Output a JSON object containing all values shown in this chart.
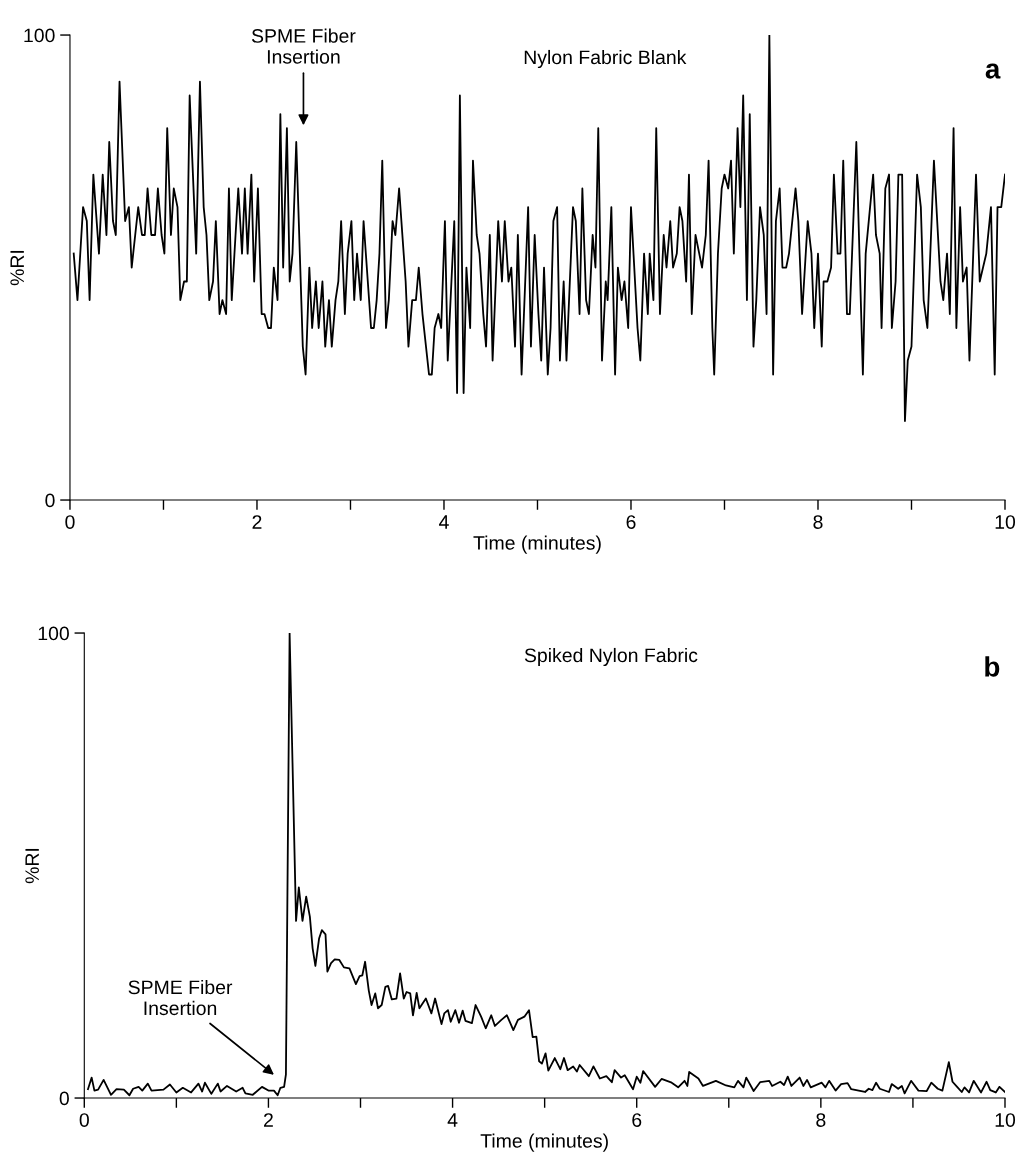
{
  "chart_data": [
    {
      "type": "line",
      "xlabel": "Time (minutes)",
      "ylabel": "%RI",
      "xlim": [
        0,
        10
      ],
      "ylim": [
        0,
        100
      ],
      "xticks": [
        0,
        {
          "value": 1,
          "label": null
        },
        2,
        {
          "value": 3,
          "label": null
        },
        4,
        {
          "value": 5,
          "label": null
        },
        6,
        {
          "value": 7,
          "label": null
        },
        8,
        {
          "value": 9,
          "label": null
        },
        10
      ],
      "yticks": [
        0,
        100
      ],
      "annotations": [
        "SPME Fiber\nInsertion",
        "Nylon Fabric Blank",
        "a"
      ],
      "series": [
        {
          "color": "#000000",
          "x": [
            0.04,
            0.08,
            0.14,
            0.18,
            0.21,
            0.25,
            0.31,
            0.35,
            0.39,
            0.42,
            0.46,
            0.49,
            0.53,
            0.59,
            0.63,
            0.66,
            0.73,
            0.77,
            0.8,
            0.83,
            0.87,
            0.91,
            0.94,
            0.98,
            1.01,
            1.04,
            1.08,
            1.11,
            1.15,
            1.18,
            1.22,
            1.25,
            1.28,
            1.35,
            1.39,
            1.43,
            1.46,
            1.49,
            1.53,
            1.56,
            1.6,
            1.63,
            1.67,
            1.7,
            1.73,
            1.8,
            1.84,
            1.87,
            1.9,
            1.94,
            1.97,
            2.01,
            2.05,
            2.08,
            2.12,
            2.15,
            2.18,
            2.22,
            2.25,
            2.28,
            2.32,
            2.35,
            2.38,
            2.42,
            2.49,
            2.52,
            2.56,
            2.59,
            2.63,
            2.66,
            2.7,
            2.73,
            2.77,
            2.8,
            2.84,
            2.87,
            2.9,
            2.94,
            2.97,
            3.01,
            3.04,
            3.07,
            3.11,
            3.14,
            3.22,
            3.25,
            3.28,
            3.31,
            3.34,
            3.38,
            3.41,
            3.45,
            3.48,
            3.52,
            3.59,
            3.62,
            3.66,
            3.7,
            3.73,
            3.77,
            3.84,
            3.87,
            3.9,
            3.94,
            3.97,
            4.01,
            4.04,
            4.11,
            4.14,
            4.17,
            4.21,
            4.24,
            4.28,
            4.31,
            4.35,
            4.38,
            4.42,
            4.45,
            4.49,
            4.52,
            4.58,
            4.62,
            4.65,
            4.69,
            4.72,
            4.76,
            4.79,
            4.83,
            4.9,
            4.93,
            4.97,
            5.01,
            5.04,
            5.07,
            5.11,
            5.14,
            5.17,
            5.21,
            5.24,
            5.28,
            5.31,
            5.38,
            5.41,
            5.45,
            5.48,
            5.52,
            5.55,
            5.59,
            5.62,
            5.65,
            5.69,
            5.73,
            5.75,
            5.79,
            5.83,
            5.86,
            5.9,
            5.93,
            5.97,
            6.0,
            6.07,
            6.1,
            6.14,
            6.18,
            6.2,
            6.24,
            6.27,
            6.31,
            6.35,
            6.38,
            6.42,
            6.45,
            6.49,
            6.52,
            6.55,
            6.59,
            6.62,
            6.65,
            6.69,
            6.76,
            6.8,
            6.83,
            6.87,
            6.89,
            6.93,
            6.97,
            7.0,
            7.04,
            7.07,
            7.1,
            7.14,
            7.17,
            7.2,
            7.24,
            7.27,
            7.31,
            7.34,
            7.38,
            7.42,
            7.45,
            7.48,
            7.52,
            7.55,
            7.59,
            7.62,
            7.66,
            7.69,
            7.76,
            7.79,
            7.83,
            7.89,
            7.93,
            7.96,
            8.0,
            8.04,
            8.06,
            8.1,
            8.14,
            8.17,
            8.21,
            8.24,
            8.27,
            8.31,
            8.34,
            8.41,
            8.48,
            8.51,
            8.59,
            8.62,
            8.66,
            8.68,
            8.72,
            8.76,
            8.79,
            8.83,
            8.86,
            8.9,
            8.93,
            8.96,
            9.0,
            9.06,
            9.1,
            9.13,
            9.17,
            9.24,
            9.31,
            9.34,
            9.38,
            9.41,
            9.45,
            9.48,
            9.52,
            9.55,
            9.59,
            9.62,
            9.69,
            9.73,
            9.8,
            9.85,
            9.89,
            9.92,
            9.96,
            10.0
          ],
          "values": [
            53,
            43,
            63,
            60,
            43,
            70,
            53,
            70,
            57,
            77,
            60,
            57,
            90,
            60,
            63,
            50,
            63,
            57,
            57,
            67,
            57,
            57,
            67,
            57,
            53,
            80,
            57,
            67,
            63,
            43,
            47,
            47,
            87,
            53,
            90,
            63,
            57,
            43,
            47,
            60,
            40,
            43,
            40,
            67,
            43,
            67,
            53,
            67,
            53,
            70,
            47,
            67,
            40,
            40,
            37,
            37,
            50,
            43,
            83,
            50,
            80,
            47,
            53,
            77,
            33,
            27,
            50,
            37,
            47,
            37,
            47,
            33,
            43,
            33,
            43,
            47,
            60,
            40,
            53,
            60,
            43,
            53,
            43,
            60,
            37,
            37,
            43,
            53,
            73,
            37,
            43,
            60,
            57,
            67,
            47,
            33,
            43,
            43,
            50,
            40,
            27,
            27,
            37,
            40,
            37,
            60,
            30,
            60,
            23,
            87,
            23,
            50,
            37,
            73,
            57,
            53,
            40,
            33,
            57,
            30,
            60,
            47,
            60,
            47,
            50,
            33,
            57,
            27,
            63,
            33,
            57,
            40,
            30,
            50,
            27,
            37,
            60,
            63,
            30,
            47,
            30,
            63,
            60,
            40,
            67,
            43,
            40,
            57,
            50,
            80,
            30,
            47,
            43,
            63,
            27,
            50,
            43,
            47,
            37,
            63,
            37,
            30,
            53,
            40,
            53,
            43,
            80,
            40,
            57,
            50,
            60,
            50,
            53,
            63,
            60,
            47,
            70,
            40,
            57,
            50,
            57,
            73,
            37,
            27,
            53,
            67,
            70,
            67,
            73,
            53,
            80,
            63,
            87,
            43,
            83,
            33,
            43,
            63,
            57,
            40,
            100,
            27,
            60,
            67,
            50,
            50,
            53,
            67,
            60,
            40,
            60,
            53,
            37,
            53,
            33,
            47,
            47,
            50,
            70,
            53,
            53,
            73,
            40,
            40,
            77,
            27,
            53,
            70,
            57,
            53,
            37,
            67,
            70,
            37,
            47,
            70,
            70,
            17,
            30,
            33,
            70,
            63,
            43,
            37,
            73,
            47,
            43,
            53,
            40,
            80,
            37,
            63,
            47,
            50,
            30,
            70,
            47,
            53,
            63,
            27,
            63,
            63,
            70
          ]
        }
      ]
    },
    {
      "type": "line",
      "xlabel": "Time (minutes)",
      "ylabel": "%RI",
      "xlim": [
        0,
        10
      ],
      "ylim": [
        0,
        100
      ],
      "xticks": [
        0,
        {
          "value": 1,
          "label": null
        },
        2,
        {
          "value": 3,
          "label": null
        },
        4,
        {
          "value": 5,
          "label": null
        },
        6,
        {
          "value": 7,
          "label": null
        },
        8,
        {
          "value": 9,
          "label": null
        },
        10
      ],
      "yticks": [
        0,
        100
      ],
      "annotations": [
        "SPME Fiber\nInsertion",
        "Spiked Nylon Fabric",
        "b"
      ],
      "series": [
        {
          "color": "#000000",
          "x": [
            0.04,
            0.08,
            0.11,
            0.15,
            0.21,
            0.29,
            0.35,
            0.43,
            0.49,
            0.53,
            0.59,
            0.63,
            0.69,
            0.73,
            0.86,
            0.93,
            1.0,
            1.07,
            1.16,
            1.24,
            1.28,
            1.31,
            1.38,
            1.45,
            1.48,
            1.55,
            1.65,
            1.72,
            1.75,
            1.83,
            1.93,
            2.0,
            2.06,
            2.1,
            2.13,
            2.17,
            2.19,
            2.23,
            2.3,
            2.33,
            2.37,
            2.41,
            2.45,
            2.48,
            2.51,
            2.55,
            2.58,
            2.62,
            2.64,
            2.68,
            2.72,
            2.77,
            2.82,
            2.88,
            2.95,
            2.99,
            3.02,
            3.05,
            3.09,
            3.12,
            3.16,
            3.19,
            3.23,
            3.27,
            3.3,
            3.34,
            3.39,
            3.43,
            3.47,
            3.5,
            3.54,
            3.57,
            3.61,
            3.64,
            3.71,
            3.77,
            3.81,
            3.88,
            3.91,
            3.95,
            3.98,
            4.03,
            4.07,
            4.11,
            4.14,
            4.21,
            4.25,
            4.31,
            4.36,
            4.42,
            4.46,
            4.53,
            4.59,
            4.66,
            4.71,
            4.78,
            4.83,
            4.87,
            4.91,
            4.94,
            4.97,
            5.01,
            5.04,
            5.11,
            5.17,
            5.21,
            5.25,
            5.31,
            5.35,
            5.38,
            5.48,
            5.53,
            5.6,
            5.67,
            5.73,
            5.76,
            5.83,
            5.87,
            5.96,
            6.0,
            6.04,
            6.07,
            6.2,
            6.27,
            6.38,
            6.45,
            6.52,
            6.55,
            6.57,
            6.67,
            6.72,
            6.86,
            6.97,
            7.06,
            7.1,
            7.16,
            7.19,
            7.27,
            7.34,
            7.44,
            7.47,
            7.56,
            7.6,
            7.64,
            7.68,
            7.77,
            7.81,
            7.85,
            7.89,
            8.01,
            8.05,
            8.09,
            8.16,
            8.22,
            8.29,
            8.33,
            8.48,
            8.52,
            8.56,
            8.6,
            8.64,
            8.74,
            8.77,
            8.84,
            8.88,
            8.91,
            8.98,
            9.06,
            9.15,
            9.2,
            9.27,
            9.32,
            9.39,
            9.43,
            9.48,
            9.53,
            9.56,
            9.61,
            9.66,
            9.74,
            9.8,
            9.84,
            9.9,
            9.94,
            10.0
          ],
          "values": [
            1.9,
            4.4,
            1.6,
            1.8,
            3.9,
            0.7,
            1.9,
            1.8,
            0.6,
            2.0,
            2.4,
            1.6,
            3.1,
            1.6,
            1.8,
            2.9,
            1.2,
            2.2,
            1.2,
            3.1,
            1.4,
            3.3,
            0.9,
            3.1,
            1.4,
            2.6,
            1.4,
            2.2,
            1.0,
            0.7,
            2.4,
            1.6,
            1.6,
            0.6,
            2.2,
            2.4,
            5.1,
            100,
            38.1,
            45.3,
            38.1,
            43.3,
            39.0,
            32.2,
            28.4,
            34.3,
            36.1,
            35.2,
            27.2,
            29.0,
            29.8,
            29.7,
            28.1,
            27.9,
            24.5,
            26.2,
            26.4,
            29.3,
            23.1,
            20.0,
            22.5,
            19.3,
            20.0,
            23.9,
            24.1,
            21.2,
            21.4,
            26.8,
            21.4,
            22.8,
            22.5,
            17.8,
            22.6,
            19.3,
            21.4,
            18.2,
            21.4,
            15.9,
            18.2,
            18.9,
            16.4,
            18.9,
            16.2,
            18.8,
            16.6,
            16.1,
            20.0,
            17.5,
            15.0,
            17.8,
            15.5,
            16.8,
            17.8,
            14.6,
            16.8,
            17.5,
            18.9,
            13.1,
            13.2,
            7.9,
            7.4,
            9.6,
            5.9,
            8.6,
            6.2,
            8.6,
            6.0,
            6.8,
            5.7,
            7.1,
            4.7,
            6.8,
            4.2,
            4.7,
            3.4,
            6.0,
            4.4,
            4.9,
            1.9,
            4.6,
            3.3,
            5.8,
            2.4,
            4.1,
            3.3,
            2.3,
            3.7,
            2.6,
            5.6,
            4.2,
            2.6,
            3.7,
            2.7,
            2.3,
            3.7,
            2.3,
            4.4,
            1.5,
            3.4,
            3.7,
            2.6,
            3.5,
            2.8,
            4.6,
            2.6,
            4.4,
            2.6,
            3.9,
            2.3,
            3.3,
            2.3,
            3.7,
            1.6,
            3.0,
            3.2,
            1.9,
            1.3,
            2.0,
            1.7,
            3.3,
            2.0,
            1.3,
            3.0,
            2.0,
            2.6,
            1.0,
            3.7,
            1.6,
            1.5,
            3.3,
            2.0,
            1.6,
            7.7,
            3.5,
            2.4,
            1.3,
            2.3,
            1.2,
            3.7,
            1.2,
            3.5,
            1.7,
            1.2,
            2.4,
            1.3
          ]
        }
      ]
    }
  ]
}
